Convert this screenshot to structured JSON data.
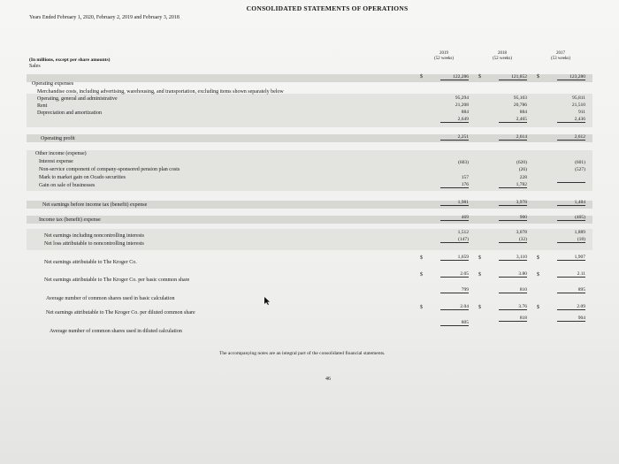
{
  "title": "CONSOLIDATED STATEMENTS OF OPERATIONS",
  "subtitle": "Years Ended February 1, 2020, February 2, 2019 and February 3, 2018",
  "units_note": "(In millions, except per share amounts)",
  "columns": [
    {
      "year": "2019",
      "weeks": "(52 weeks)"
    },
    {
      "year": "2018",
      "weeks": "(52 weeks)"
    },
    {
      "year": "2017",
      "weeks": "(53 weeks)"
    }
  ],
  "rows": {
    "sales": {
      "label": "Sales",
      "values": [
        "122,286",
        "121,852",
        "123,280"
      ]
    },
    "operating_expenses": {
      "label": "Operating expenses"
    },
    "merch": {
      "label": "Merchandise costs, including advertising, warehousing, and transportation, excluding items shown separately below",
      "values": [
        "95,294",
        "95,103",
        "95,811"
      ]
    },
    "oga": {
      "label": "Operating, general and administrative",
      "values": [
        "21,208",
        "20,786",
        "21,510"
      ]
    },
    "rent": {
      "label": "Rent",
      "values": [
        "884",
        "884",
        "911"
      ]
    },
    "depr": {
      "label": "Depreciation and amortization",
      "values": [
        "2,649",
        "2,465",
        "2,436"
      ]
    },
    "op_profit": {
      "label": "Operating profit",
      "values": [
        "2,251",
        "2,614",
        "2,612"
      ]
    },
    "other_income": {
      "label": "Other income (expense)"
    },
    "interest": {
      "label": "Interest expense",
      "values": [
        "(603)",
        "(620)",
        "(601)"
      ]
    },
    "pension": {
      "label": "Non-service component of company-sponsored pension plan costs",
      "values": [
        "",
        "(26)",
        "(527)"
      ]
    },
    "ocado": {
      "label": "Mark to market gain on Ocado securities",
      "values": [
        "157",
        "228",
        ""
      ]
    },
    "gain_sale": {
      "label": "Gain on sale of businesses",
      "values": [
        "176",
        "1,782",
        ""
      ]
    },
    "ebt": {
      "label": "Net earnings before income tax (benefit) expense",
      "values": [
        "1,981",
        "3,978",
        "1,484"
      ]
    },
    "tax": {
      "label": "Income tax (benefit) expense",
      "values": [
        "469",
        "900",
        "(405)"
      ]
    },
    "net_incl": {
      "label": "Net earnings including noncontrolling interests",
      "values": [
        "1,512",
        "3,078",
        "1,889"
      ]
    },
    "net_loss_nci": {
      "label": "Net loss attributable to noncontrolling interests",
      "values": [
        "(147)",
        "(32)",
        "(18)"
      ]
    },
    "net_kroger": {
      "label": "Net earnings attributable to The Kroger Co.",
      "values": [
        "1,659",
        "3,110",
        "1,907"
      ]
    },
    "eps_basic": {
      "label": "Net earnings attributable to The Kroger Co. per basic common share",
      "values": [
        "2.05",
        "3.80",
        "2.11"
      ]
    },
    "shares_basic": {
      "label": "Average number of common shares used in basic calculation",
      "values": [
        "799",
        "810",
        "895"
      ]
    },
    "eps_diluted": {
      "label": "Net earnings attributable to The Kroger Co. per diluted common share",
      "values": [
        "2.04",
        "3.76",
        "2.09"
      ]
    },
    "shares_diluted": {
      "label": "Average number of common shares used in diluted calculation",
      "values": [
        "805",
        "818",
        "904"
      ]
    }
  },
  "currency_symbol": "$",
  "footnote": "The accompanying notes are an integral part of the consolidated financial statements.",
  "page_number": "46"
}
